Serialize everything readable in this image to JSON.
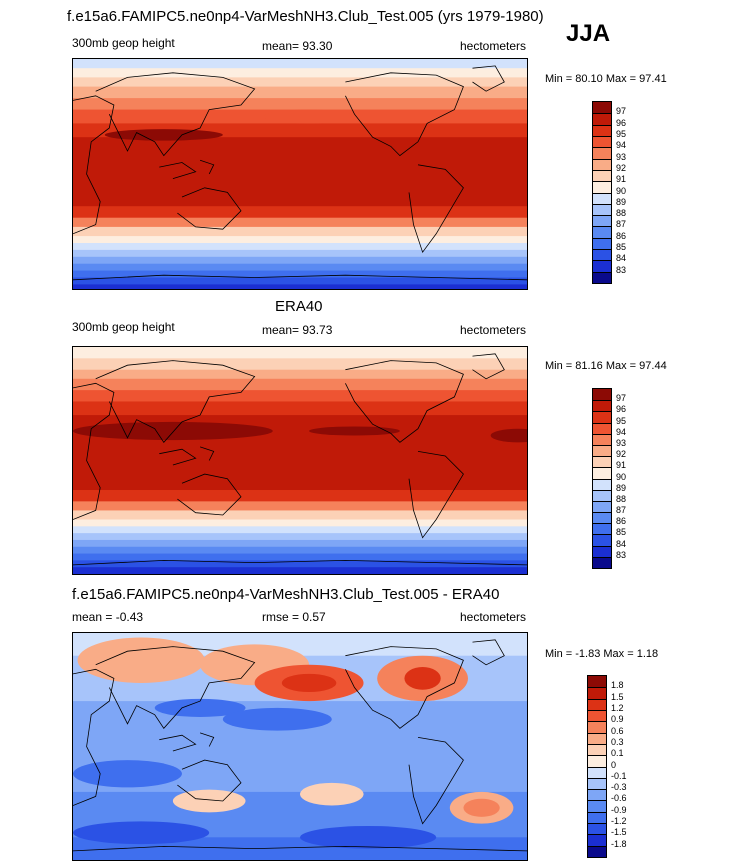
{
  "season": "JJA",
  "colors": {
    "red_scale": [
      "#0a0a8c",
      "#1b2fd2",
      "#2b52e5",
      "#3f6fee",
      "#5a8af2",
      "#7ea6f6",
      "#a7c4fa",
      "#d2e2fc",
      "#fdeee0",
      "#fcd1b6",
      "#f9ac87",
      "#f5825b",
      "#ee5432",
      "#dc3215",
      "#c01a08",
      "#8c0a05"
    ],
    "land_outline": "#000000"
  },
  "chart_data": [
    {
      "type": "heatmap",
      "title": "f.e15a6.FAMIPC5.ne0np4-VarMeshNH3.Club_Test.005 (yrs 1979-1980)",
      "left_label": "300mb geop height",
      "center_label": "mean=  93.30",
      "right_label": "hectometers",
      "minmax": "Min =  80.10 Max =  97.41",
      "colorbar_levels": [
        "97",
        "96",
        "95",
        "94",
        "93",
        "92",
        "91",
        "90",
        "89",
        "88",
        "87",
        "86",
        "85",
        "84",
        "83"
      ]
    },
    {
      "type": "heatmap",
      "title": "ERA40",
      "left_label": "300mb geop height",
      "center_label": "mean=  93.73",
      "right_label": "hectometers",
      "minmax": "Min =  81.16 Max =  97.44",
      "colorbar_levels": [
        "97",
        "96",
        "95",
        "94",
        "93",
        "92",
        "91",
        "90",
        "89",
        "88",
        "87",
        "86",
        "85",
        "84",
        "83"
      ]
    },
    {
      "type": "heatmap",
      "title": "f.e15a6.FAMIPC5.ne0np4-VarMeshNH3.Club_Test.005 - ERA40",
      "left_label": "mean =  -0.43",
      "center_label": "rmse =   0.57",
      "right_label": "hectometers",
      "minmax": "Min =  -1.83 Max =   1.18",
      "colorbar_levels": [
        "1.8",
        "1.5",
        "1.2",
        "0.9",
        "0.6",
        "0.3",
        "0.1",
        "0",
        "-0.1",
        "-0.3",
        "-0.6",
        "-0.9",
        "-1.2",
        "-1.5",
        "-1.8"
      ]
    }
  ]
}
